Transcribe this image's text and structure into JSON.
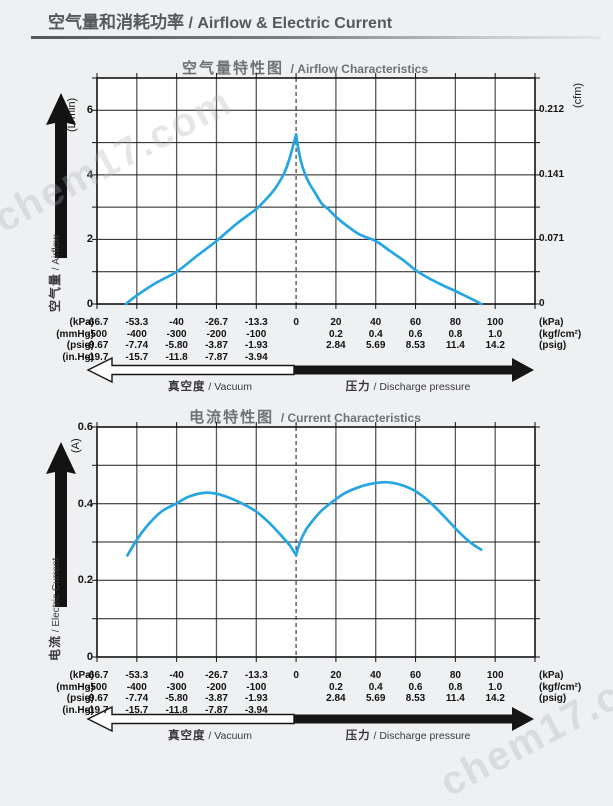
{
  "header": {
    "title_zh": "空气量和消耗功率",
    "title_en": " / Airflow & Electric Current"
  },
  "watermark": "chem17.com",
  "x_axis": {
    "unit": "kPa",
    "ticks_kpa": [
      -66.7,
      -53.3,
      -40,
      -26.7,
      -13.3,
      0,
      20,
      40,
      60,
      80,
      100
    ],
    "rows": [
      {
        "unit_left": "(kPa)",
        "unit_right": "(kPa)",
        "values": [
          "-66.7",
          "-53.3",
          "-40",
          "-26.7",
          "-13.3",
          "0",
          "20",
          "40",
          "60",
          "80",
          "100"
        ]
      },
      {
        "unit_left": "(mmHg)",
        "unit_right": "(kgf/cm²)",
        "values": [
          "-500",
          "-400",
          "-300",
          "-200",
          "-100",
          "",
          "0.2",
          "0.4",
          "0.6",
          "0.8",
          "1.0"
        ]
      },
      {
        "unit_left": "(psig)",
        "unit_right": "(psig)",
        "values": [
          "-9.67",
          "-7.74",
          "-5.80",
          "-3.87",
          "-1.93",
          "",
          "2.84",
          "5.69",
          "8.53",
          "11.4",
          "14.2"
        ]
      },
      {
        "unit_left": "(in.Hg)",
        "unit_right": "",
        "values": [
          "-19.7",
          "-15.7",
          "-11.8",
          "-7.87",
          "-3.94",
          "",
          "",
          "",
          "",
          "",
          ""
        ]
      }
    ],
    "vacuum_zh": "真空度",
    "vacuum_en": " / Vacuum",
    "pressure_zh": "压力",
    "pressure_en": " / Discharge pressure"
  },
  "chart_data": [
    {
      "type": "line",
      "title_zh": "空气量特性图",
      "title_en": " / Airflow Characteristics",
      "axis_name_zh": "空气量",
      "axis_name_en": " / Airflow",
      "unit_left": "(L/min)",
      "unit_right": "(cfm)",
      "xlabel": "Pressure (kPa): vacuum -66.7..0, discharge 0..100",
      "ylim": [
        0,
        7
      ],
      "ystep": 1,
      "yticks_left": [
        {
          "v": 0,
          "t": "0"
        },
        {
          "v": 2,
          "t": "2"
        },
        {
          "v": 4,
          "t": "4"
        },
        {
          "v": 6,
          "t": "6"
        }
      ],
      "yticks_right": [
        {
          "v": 0,
          "t": "0"
        },
        {
          "v": 2,
          "t": "0.071"
        },
        {
          "v": 4,
          "t": "0.141"
        },
        {
          "v": 6,
          "t": "0.212"
        }
      ],
      "line_color": "#25a5e2",
      "grid": true,
      "series": [
        {
          "name": "airflow",
          "segments": [
            [
              [
                -57,
                0
              ],
              [
                -53.3,
                0.27
              ],
              [
                -47,
                0.65
              ],
              [
                -40,
                1.0
              ],
              [
                -33.5,
                1.47
              ],
              [
                -26.7,
                1.95
              ],
              [
                -20,
                2.48
              ],
              [
                -13.3,
                2.95
              ],
              [
                -9.5,
                3.3
              ],
              [
                -6.5,
                3.65
              ],
              [
                -4,
                4.05
              ],
              [
                -2.2,
                4.5
              ],
              [
                -1,
                4.9
              ],
              [
                0,
                5.25
              ]
            ],
            [
              [
                0,
                5.25
              ],
              [
                1,
                4.85
              ],
              [
                2.3,
                4.45
              ],
              [
                4,
                4.1
              ],
              [
                6.5,
                3.75
              ],
              [
                9.5,
                3.45
              ],
              [
                13,
                3.1
              ],
              [
                16,
                2.95
              ],
              [
                20,
                2.7
              ],
              [
                26,
                2.4
              ],
              [
                32,
                2.15
              ],
              [
                40,
                1.95
              ],
              [
                47,
                1.65
              ],
              [
                54,
                1.35
              ],
              [
                60,
                1.05
              ],
              [
                66,
                0.82
              ],
              [
                73,
                0.6
              ],
              [
                80,
                0.4
              ],
              [
                86,
                0.22
              ],
              [
                90,
                0.1
              ],
              [
                93,
                0
              ]
            ]
          ]
        }
      ]
    },
    {
      "type": "line",
      "title_zh": "电流特性图",
      "title_en": " / Current Characteristics",
      "axis_name_zh": "电流",
      "axis_name_en": " / Electric Current",
      "unit_left": "(A)",
      "unit_right": "",
      "xlabel": "Pressure (kPa): vacuum -66.7..0, discharge 0..100",
      "ylim": [
        0,
        0.6
      ],
      "ystep": 0.1,
      "yticks_left": [
        {
          "v": 0,
          "t": "0"
        },
        {
          "v": 0.2,
          "t": "0.2"
        },
        {
          "v": 0.4,
          "t": "0.4"
        },
        {
          "v": 0.6,
          "t": "0.6"
        }
      ],
      "yticks_right": [],
      "line_color": "#25a5e2",
      "grid": true,
      "series": [
        {
          "name": "electric-current",
          "segments": [
            [
              [
                -56.5,
                0.265
              ],
              [
                -53,
                0.31
              ],
              [
                -49,
                0.35
              ],
              [
                -45,
                0.38
              ],
              [
                -40,
                0.401
              ],
              [
                -36,
                0.418
              ],
              [
                -31,
                0.428
              ],
              [
                -26.7,
                0.426
              ],
              [
                -22,
                0.414
              ],
              [
                -17,
                0.396
              ],
              [
                -13.3,
                0.379
              ],
              [
                -9,
                0.35
              ],
              [
                -5,
                0.317
              ],
              [
                -2,
                0.29
              ],
              [
                0,
                0.266
              ]
            ],
            [
              [
                0,
                0.266
              ],
              [
                2,
                0.3
              ],
              [
                5,
                0.332
              ],
              [
                9,
                0.36
              ],
              [
                13,
                0.383
              ],
              [
                18,
                0.404
              ],
              [
                24,
                0.426
              ],
              [
                30,
                0.44
              ],
              [
                37,
                0.451
              ],
              [
                45,
                0.456
              ],
              [
                52,
                0.45
              ],
              [
                58,
                0.438
              ],
              [
                64,
                0.418
              ],
              [
                70,
                0.39
              ],
              [
                76,
                0.358
              ],
              [
                82,
                0.325
              ],
              [
                88,
                0.297
              ],
              [
                93,
                0.28
              ]
            ]
          ]
        }
      ]
    }
  ]
}
